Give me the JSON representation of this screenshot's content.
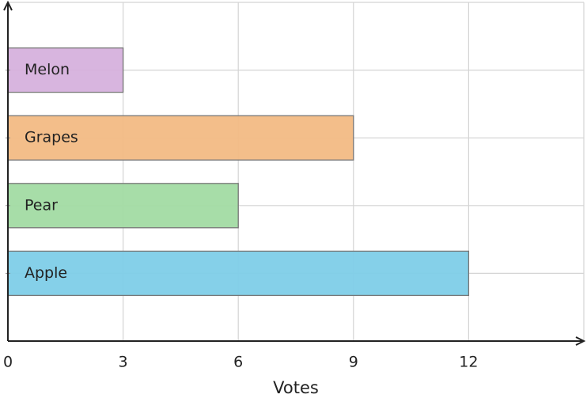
{
  "chart_data": {
    "type": "barh",
    "x_label": "Votes",
    "categories": [
      "Apple",
      "Pear",
      "Grapes",
      "Melon"
    ],
    "values": [
      12,
      6,
      9,
      3
    ],
    "colors": [
      "#7ecde8",
      "#a2dba3",
      "#f2bb84",
      "#d6b1dd"
    ],
    "xlim": [
      0,
      15
    ],
    "xticks": [
      0,
      3,
      6,
      9,
      12
    ],
    "grid": true
  }
}
